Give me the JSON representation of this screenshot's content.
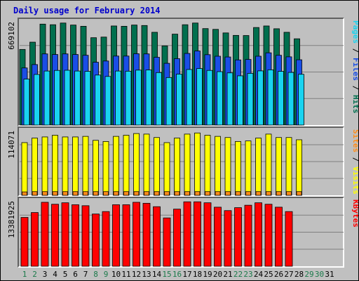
{
  "chart_data": {
    "type": "bar",
    "title": "Daily usage for February 2014",
    "days": [
      "1",
      "2",
      "3",
      "4",
      "5",
      "6",
      "7",
      "8",
      "9",
      "10",
      "11",
      "12",
      "13",
      "14",
      "15",
      "16",
      "17",
      "18",
      "19",
      "20",
      "21",
      "22",
      "23",
      "24",
      "25",
      "26",
      "27",
      "28",
      "29",
      "30",
      "31"
    ],
    "weekend_days": [
      "1",
      "2",
      "8",
      "9",
      "15",
      "16",
      "22",
      "23",
      "29",
      "30"
    ],
    "colors": {
      "hits": "#006f4e",
      "files": "#1a4ee6",
      "pages": "#19d3f0",
      "visits": "#ffff00",
      "sites": "#ff8c1a",
      "kbytes": "#ff0000",
      "weekday_label": "#000000",
      "weekend_label": "#1a7a4a",
      "bar_outline": "#000000",
      "grid": "#808080",
      "background": "#c0c0c0"
    },
    "panels": [
      {
        "id": "hits-files-pages",
        "ymax_label": "669102",
        "ymax": 669102,
        "right_label": [
          {
            "text": "Pages",
            "color": "#19d3f0"
          },
          {
            "text": " / ",
            "color": "#000000"
          },
          {
            "text": "Files",
            "color": "#1a4ee6"
          },
          {
            "text": " / ",
            "color": "#000000"
          },
          {
            "text": "Hits",
            "color": "#006f4e"
          }
        ],
        "series": [
          {
            "name": "Hits",
            "values": [
              490000,
              537000,
              654000,
              650000,
              661000,
              648000,
              640000,
              566000,
              570000,
              642000,
              640000,
              648000,
              645000,
              601000,
              513000,
              589000,
              650000,
              661000,
              625000,
              620000,
              597000,
              581000,
              580000,
              632000,
              642000,
              624000,
              601000,
              559000,
              null,
              null,
              null
            ]
          },
          {
            "name": "Files",
            "values": [
              370000,
              392000,
              461000,
              457000,
              461000,
              457000,
              452000,
              407000,
              415000,
              447000,
              447000,
              462000,
              461000,
              439000,
              400000,
              430000,
              464000,
              480000,
              456000,
              446000,
              441000,
              422000,
              425000,
              446000,
              468000,
              452000,
              442000,
              423000,
              null,
              null,
              null
            ]
          },
          {
            "name": "Pages",
            "values": [
              298000,
              328000,
              350000,
              354000,
              355000,
              350000,
              348000,
              324000,
              315000,
              350000,
              349000,
              356000,
              357000,
              340000,
              308000,
              330000,
              360000,
              366000,
              354000,
              346000,
              338000,
              319000,
              335000,
              351000,
              358000,
              348000,
              341000,
              329000,
              null,
              null,
              null
            ]
          }
        ]
      },
      {
        "id": "visits-sites",
        "ymax_label": "114071",
        "ymax": 114071,
        "right_label": [
          {
            "text": "Sites",
            "color": "#ff8c1a"
          },
          {
            "text": " / ",
            "color": "#000000"
          },
          {
            "text": "Visits",
            "color": "#ffff00"
          }
        ],
        "series": [
          {
            "name": "Visits",
            "values": [
              93000,
              101000,
              103000,
              106000,
              103000,
              103000,
              104000,
              97000,
              95000,
              104000,
              106000,
              109000,
              108000,
              102000,
              93000,
              101000,
              108000,
              110000,
              106000,
              104000,
              102000,
              95000,
              96000,
              101000,
              108000,
              102000,
              102000,
              98000,
              null,
              null,
              null
            ]
          },
          {
            "name": "Sites",
            "values": [
              6000,
              6500,
              6500,
              6500,
              6500,
              6500,
              6500,
              6500,
              6500,
              6500,
              6500,
              6500,
              6500,
              6500,
              6500,
              6500,
              6500,
              6500,
              6500,
              6500,
              6500,
              6500,
              6500,
              6500,
              6500,
              6500,
              6500,
              6500,
              null,
              null,
              null
            ]
          }
        ]
      },
      {
        "id": "kbytes",
        "ymax_label": "13381925",
        "ymax": 13381925,
        "right_label": [
          {
            "text": "KBytes",
            "color": "#ff0000"
          }
        ],
        "series": [
          {
            "name": "KBytes",
            "values": [
              10000000,
              11000000,
              13100000,
              12700000,
              13000000,
              12600000,
              12400000,
              10700000,
              11200000,
              12600000,
              12600000,
              13100000,
              12900000,
              12200000,
              9900000,
              11700000,
              13200000,
              13200000,
              13000000,
              12100000,
              11400000,
              12000000,
              12500000,
              13000000,
              12700000,
              12100000,
              11200000,
              null,
              null,
              null,
              null
            ]
          }
        ]
      }
    ]
  }
}
